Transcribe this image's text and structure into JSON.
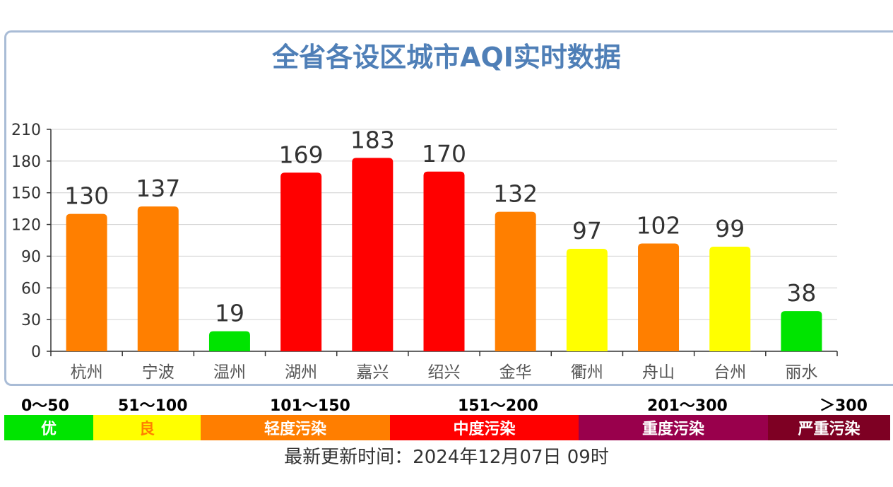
{
  "title": "全省各设区城市AQI实时数据",
  "chart_data": {
    "type": "bar",
    "categories": [
      "杭州",
      "宁波",
      "温州",
      "湖州",
      "嘉兴",
      "绍兴",
      "金华",
      "衢州",
      "舟山",
      "台州",
      "丽水"
    ],
    "values": [
      130,
      137,
      19,
      169,
      183,
      170,
      132,
      97,
      102,
      99,
      38
    ],
    "bar_colors": [
      "#ff7f00",
      "#ff7f00",
      "#00e400",
      "#ff0000",
      "#ff0000",
      "#ff0000",
      "#ff7f00",
      "#ffff00",
      "#ff7f00",
      "#ffff00",
      "#00e400"
    ],
    "yticks": [
      "0",
      "30",
      "60",
      "90",
      "120",
      "150",
      "180",
      "210"
    ],
    "ylim": [
      0,
      210
    ],
    "grid": true
  },
  "legend": {
    "ranges": [
      "0～50",
      "51～100",
      "101～150",
      "151～200",
      "201～300",
      "＞300"
    ],
    "levels": [
      {
        "label": "优",
        "color": "#00e400",
        "text_color": "#ffffff"
      },
      {
        "label": "良",
        "color": "#ffff00",
        "text_color": "#ff7f00"
      },
      {
        "label": "轻度污染",
        "color": "#ff7e00",
        "text_color": "#ffffff"
      },
      {
        "label": "中度污染",
        "color": "#ff0000",
        "text_color": "#ffffff"
      },
      {
        "label": "重度污染",
        "color": "#99004c",
        "text_color": "#ffffff"
      },
      {
        "label": "严重污染",
        "color": "#7e0023",
        "text_color": "#ffffff"
      }
    ]
  },
  "update_text": "最新更新时间：2024年12月07日 09时"
}
